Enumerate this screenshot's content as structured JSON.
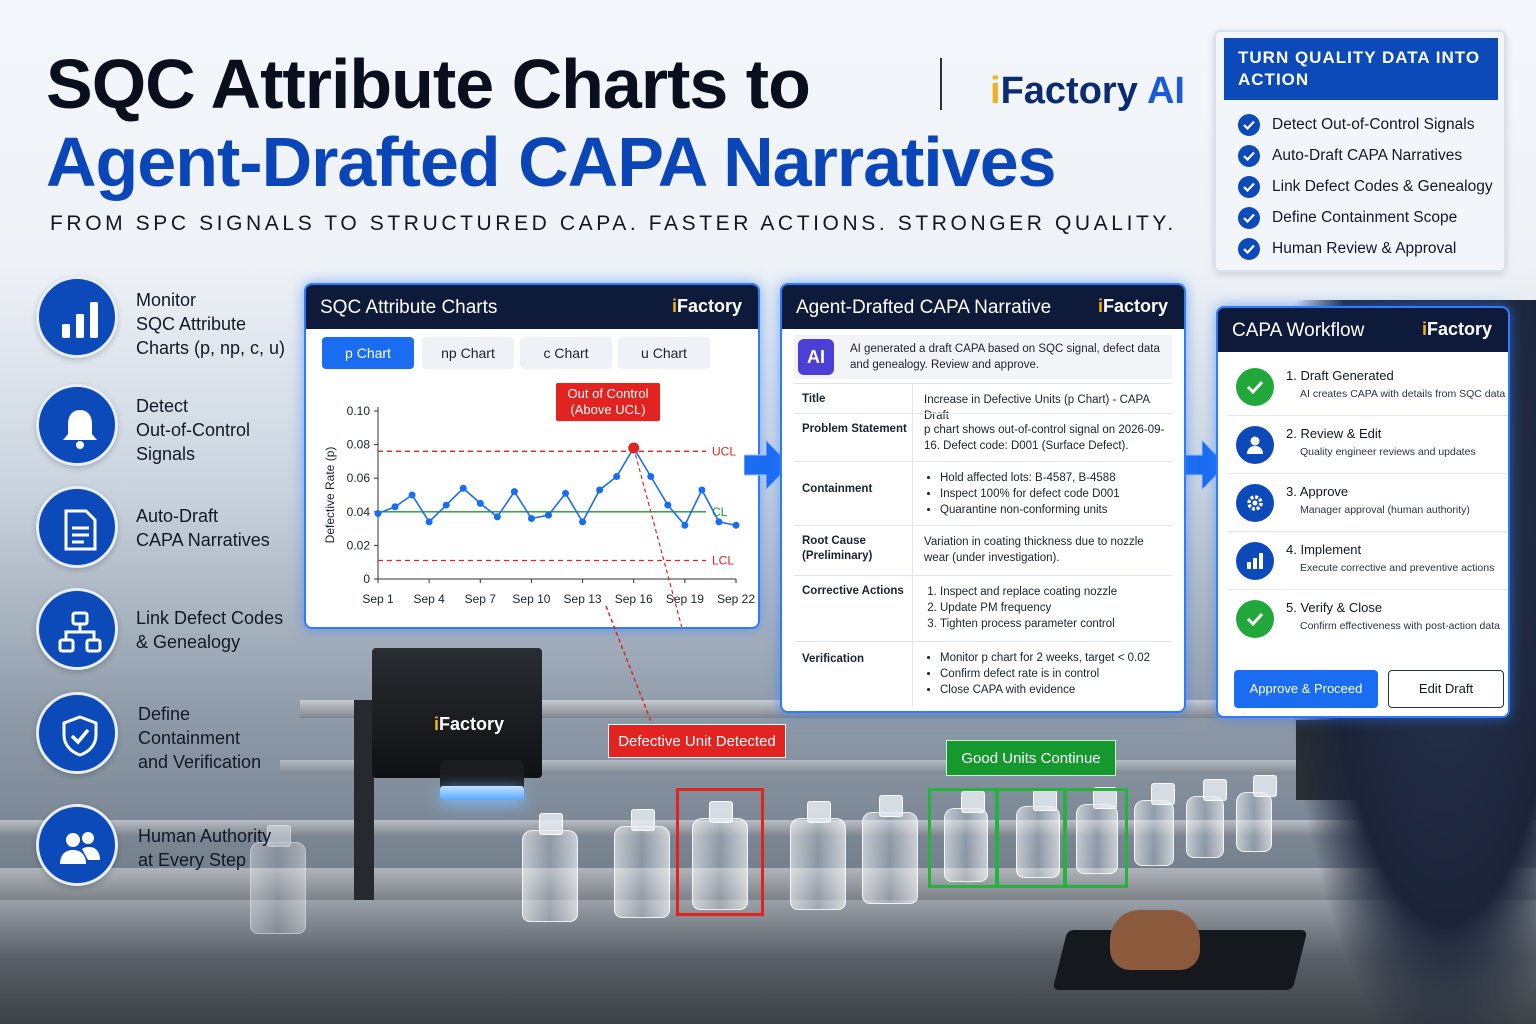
{
  "header": {
    "title_line1": "SQC Attribute Charts to",
    "title_line2": "Agent-Drafted CAPA Narratives",
    "brand_i": "i",
    "brand_name": "Factory",
    "brand_ai": " AI",
    "subtitle": "FROM SPC SIGNALS TO STRUCTURED CAPA. FASTER ACTIONS. STRONGER QUALITY."
  },
  "features": [
    {
      "icon": "bar-chart-icon",
      "lines": [
        "Monitor",
        "SQC Attribute",
        "Charts (p, np, c, u)"
      ]
    },
    {
      "icon": "bell-icon",
      "lines": [
        "Detect",
        "Out-of-Control",
        "Signals"
      ]
    },
    {
      "icon": "document-icon",
      "lines": [
        "Auto-Draft",
        "CAPA Narratives"
      ]
    },
    {
      "icon": "hierarchy-icon",
      "lines": [
        "Link Defect Codes",
        "& Genealogy"
      ]
    },
    {
      "icon": "shield-check-icon",
      "lines": [
        "Define",
        "Containment",
        "and Verification"
      ]
    },
    {
      "icon": "users-icon",
      "lines": [
        "Human Authority",
        "at Every Step"
      ]
    }
  ],
  "chart_panel": {
    "title": "SQC Attribute Charts",
    "brand_i": "i",
    "brand_name": "Factory",
    "tabs": [
      {
        "label": "p Chart",
        "active": true
      },
      {
        "label": "np Chart",
        "active": false
      },
      {
        "label": "c Chart",
        "active": false
      },
      {
        "label": "u Chart",
        "active": false
      }
    ],
    "callout_line1": "Out of Control",
    "callout_line2": "(Above UCL)"
  },
  "chart_data": {
    "type": "line",
    "title": "",
    "xlabel": "",
    "ylabel": "Defective Rate (p)",
    "ylim": [
      0,
      0.1
    ],
    "yticks": [
      "0",
      "0.02",
      "0.04",
      "0.06",
      "0.08",
      "0.10"
    ],
    "ytick_values": [
      0,
      0.02,
      0.04,
      0.06,
      0.08,
      0.1
    ],
    "xticks": [
      "Sep 1",
      "Sep 4",
      "Sep 7",
      "Sep 10",
      "Sep 13",
      "Sep 16",
      "Sep 19",
      "Sep 22"
    ],
    "xtick_days": [
      1,
      4,
      7,
      10,
      13,
      16,
      19,
      22
    ],
    "x": [
      1,
      2,
      3,
      4,
      5,
      6,
      7,
      8,
      9,
      10,
      11,
      12,
      13,
      14,
      15,
      16,
      17,
      18,
      19,
      20,
      21,
      22
    ],
    "values": [
      0.039,
      0.043,
      0.05,
      0.034,
      0.044,
      0.054,
      0.045,
      0.037,
      0.052,
      0.036,
      0.038,
      0.051,
      0.034,
      0.053,
      0.061,
      0.078,
      0.061,
      0.044,
      0.032,
      0.053,
      0.034,
      0.032
    ],
    "out_of_control_index": 15,
    "limits": [
      {
        "label": "UCL",
        "value": 0.076,
        "color": "#e3231f"
      },
      {
        "label": "CL",
        "value": 0.04,
        "color": "#1f9a2e"
      },
      {
        "label": "LCL",
        "value": 0.011,
        "color": "#e3231f"
      }
    ],
    "line_color": "#1a6cf0",
    "grid": false
  },
  "capa_panel": {
    "title": "Agent-Drafted CAPA Narrative",
    "brand_i": "i",
    "brand_name": "Factory",
    "ai_badge": "AI",
    "ai_note": "AI generated a draft CAPA based on SQC signal, defect data and genealogy. Review and approve.",
    "fields": [
      {
        "label": "Title",
        "text": "Increase in Defective Units (p Chart) - CAPA Draft"
      },
      {
        "label": "Problem Statement",
        "text": "p chart shows out-of-control signal on 2026-09-16. Defect code: D001 (Surface Defect)."
      },
      {
        "label": "Containment",
        "bullets": [
          "Hold affected lots: B-4587, B-4588",
          "Inspect 100% for defect code D001",
          "Quarantine non-conforming units"
        ]
      },
      {
        "label": "Root Cause (Preliminary)",
        "text": "Variation in coating thickness due to nozzle wear (under investigation)."
      },
      {
        "label": "Corrective Actions",
        "numbered": [
          "Inspect and replace coating nozzle",
          "Update PM frequency",
          "Tighten process parameter control"
        ]
      },
      {
        "label": "Verification",
        "bullets": [
          "Monitor p chart for 2 weeks, target < 0.02",
          "Confirm defect rate is in control",
          "Close CAPA with evidence"
        ]
      }
    ]
  },
  "workflow_panel": {
    "title": "CAPA Workflow",
    "brand_i": "i",
    "brand_name": "Factory",
    "steps": [
      {
        "title": "1. Draft Generated",
        "desc": "AI creates CAPA with details from SQC data",
        "icon": "check-icon",
        "color": "#22a83a"
      },
      {
        "title": "2. Review & Edit",
        "desc": "Quality engineer reviews and updates",
        "icon": "user-icon",
        "color": "#0c49b9"
      },
      {
        "title": "3. Approve",
        "desc": "Manager approval (human authority)",
        "icon": "gear-icon",
        "color": "#0c49b9"
      },
      {
        "title": "4. Implement",
        "desc": "Execute corrective and preventive actions",
        "icon": "bar-chart-icon",
        "color": "#0c49b9"
      },
      {
        "title": "5. Verify & Close",
        "desc": "Confirm effectiveness with post-action data",
        "icon": "check-icon",
        "color": "#22a83a"
      }
    ],
    "approve_label": "Approve & Proceed",
    "edit_label": "Edit Draft"
  },
  "action_box": {
    "heading": "TURN QUALITY DATA INTO ACTION",
    "items": [
      "Detect Out-of-Control Signals",
      "Auto-Draft CAPA Narratives",
      "Link Defect Codes & Genealogy",
      "Define Containment Scope",
      "Human Review & Approval"
    ]
  },
  "scene": {
    "camera_brand_i": "i",
    "camera_brand_name": "Factory",
    "defect_tag": "Defective Unit Detected",
    "good_tag": "Good Units Continue"
  }
}
